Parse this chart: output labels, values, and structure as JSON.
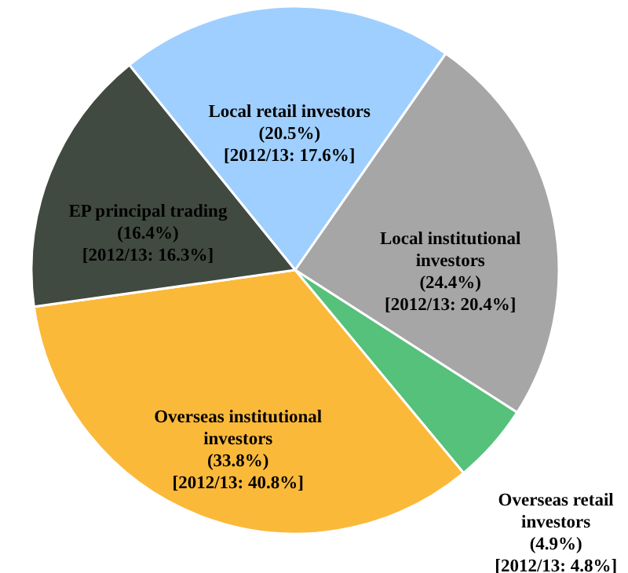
{
  "chart_data": {
    "type": "pie",
    "categories": [
      "Local retail investors",
      "Local institutional investors",
      "Overseas retail investors",
      "Overseas institutional investors",
      "EP principal trading"
    ],
    "values": [
      20.5,
      24.4,
      4.9,
      33.8,
      16.4
    ],
    "value_labels": [
      "(20.5%)",
      "(24.4%)",
      "(4.9%)",
      "(33.8%)",
      "(16.4%)"
    ],
    "colors": [
      "#9fcfff",
      "#a6a6a6",
      "#55c17a",
      "#fbb93a",
      "#404a40"
    ],
    "annotations": [
      {
        "text": "[2012/13: 17.6%]",
        "x": "Local retail investors"
      },
      {
        "text": "[2012/13: 20.4%]",
        "x": "Local institutional investors"
      },
      {
        "text": "[2012/13: 4.8%]",
        "x": "Overseas retail investors"
      },
      {
        "text": "[2012/13: 40.8%]",
        "x": "Overseas institutional investors"
      },
      {
        "text": "[2012/13: 16.3%]",
        "x": "EP principal trading"
      }
    ]
  }
}
